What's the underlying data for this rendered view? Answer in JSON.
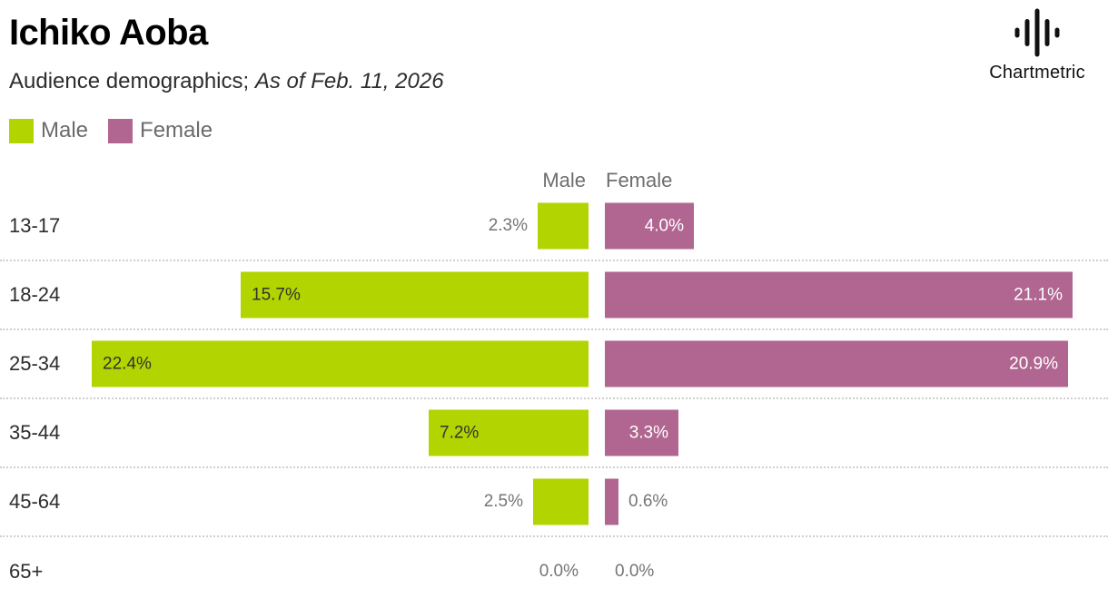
{
  "header": {
    "title": "Ichiko Aoba",
    "subtitle_regular": "Audience demographics; ",
    "subtitle_italic": "As of Feb. 11, 2026",
    "brand": "Chartmetric"
  },
  "legend": [
    {
      "label": "Male",
      "color": "#b2d400"
    },
    {
      "label": "Female",
      "color": "#b06690"
    }
  ],
  "chart_data": {
    "type": "bar",
    "variant": "bidirectional-horizontal",
    "title": "Ichiko Aoba — Audience demographics",
    "as_of": "Feb. 11, 2026",
    "column_headers": {
      "male": "Male",
      "female": "Female"
    },
    "categories": [
      "13-17",
      "18-24",
      "25-34",
      "35-44",
      "45-64",
      "65+"
    ],
    "series": [
      {
        "name": "Male",
        "color": "#b2d400",
        "values": [
          2.3,
          15.7,
          22.4,
          7.2,
          2.5,
          0.0
        ]
      },
      {
        "name": "Female",
        "color": "#b06690",
        "values": [
          4.0,
          21.1,
          20.9,
          3.3,
          0.6,
          0.0
        ]
      }
    ],
    "value_labels": {
      "male": [
        "2.3%",
        "15.7%",
        "22.4%",
        "7.2%",
        "2.5%",
        "0.0%"
      ],
      "female": [
        "4.0%",
        "21.1%",
        "20.9%",
        "3.3%",
        "0.6%",
        "0.0%"
      ]
    },
    "unit": "%",
    "axis_max": 22.4,
    "grid": "dotted-row-dividers",
    "legend_position": "top-left"
  }
}
